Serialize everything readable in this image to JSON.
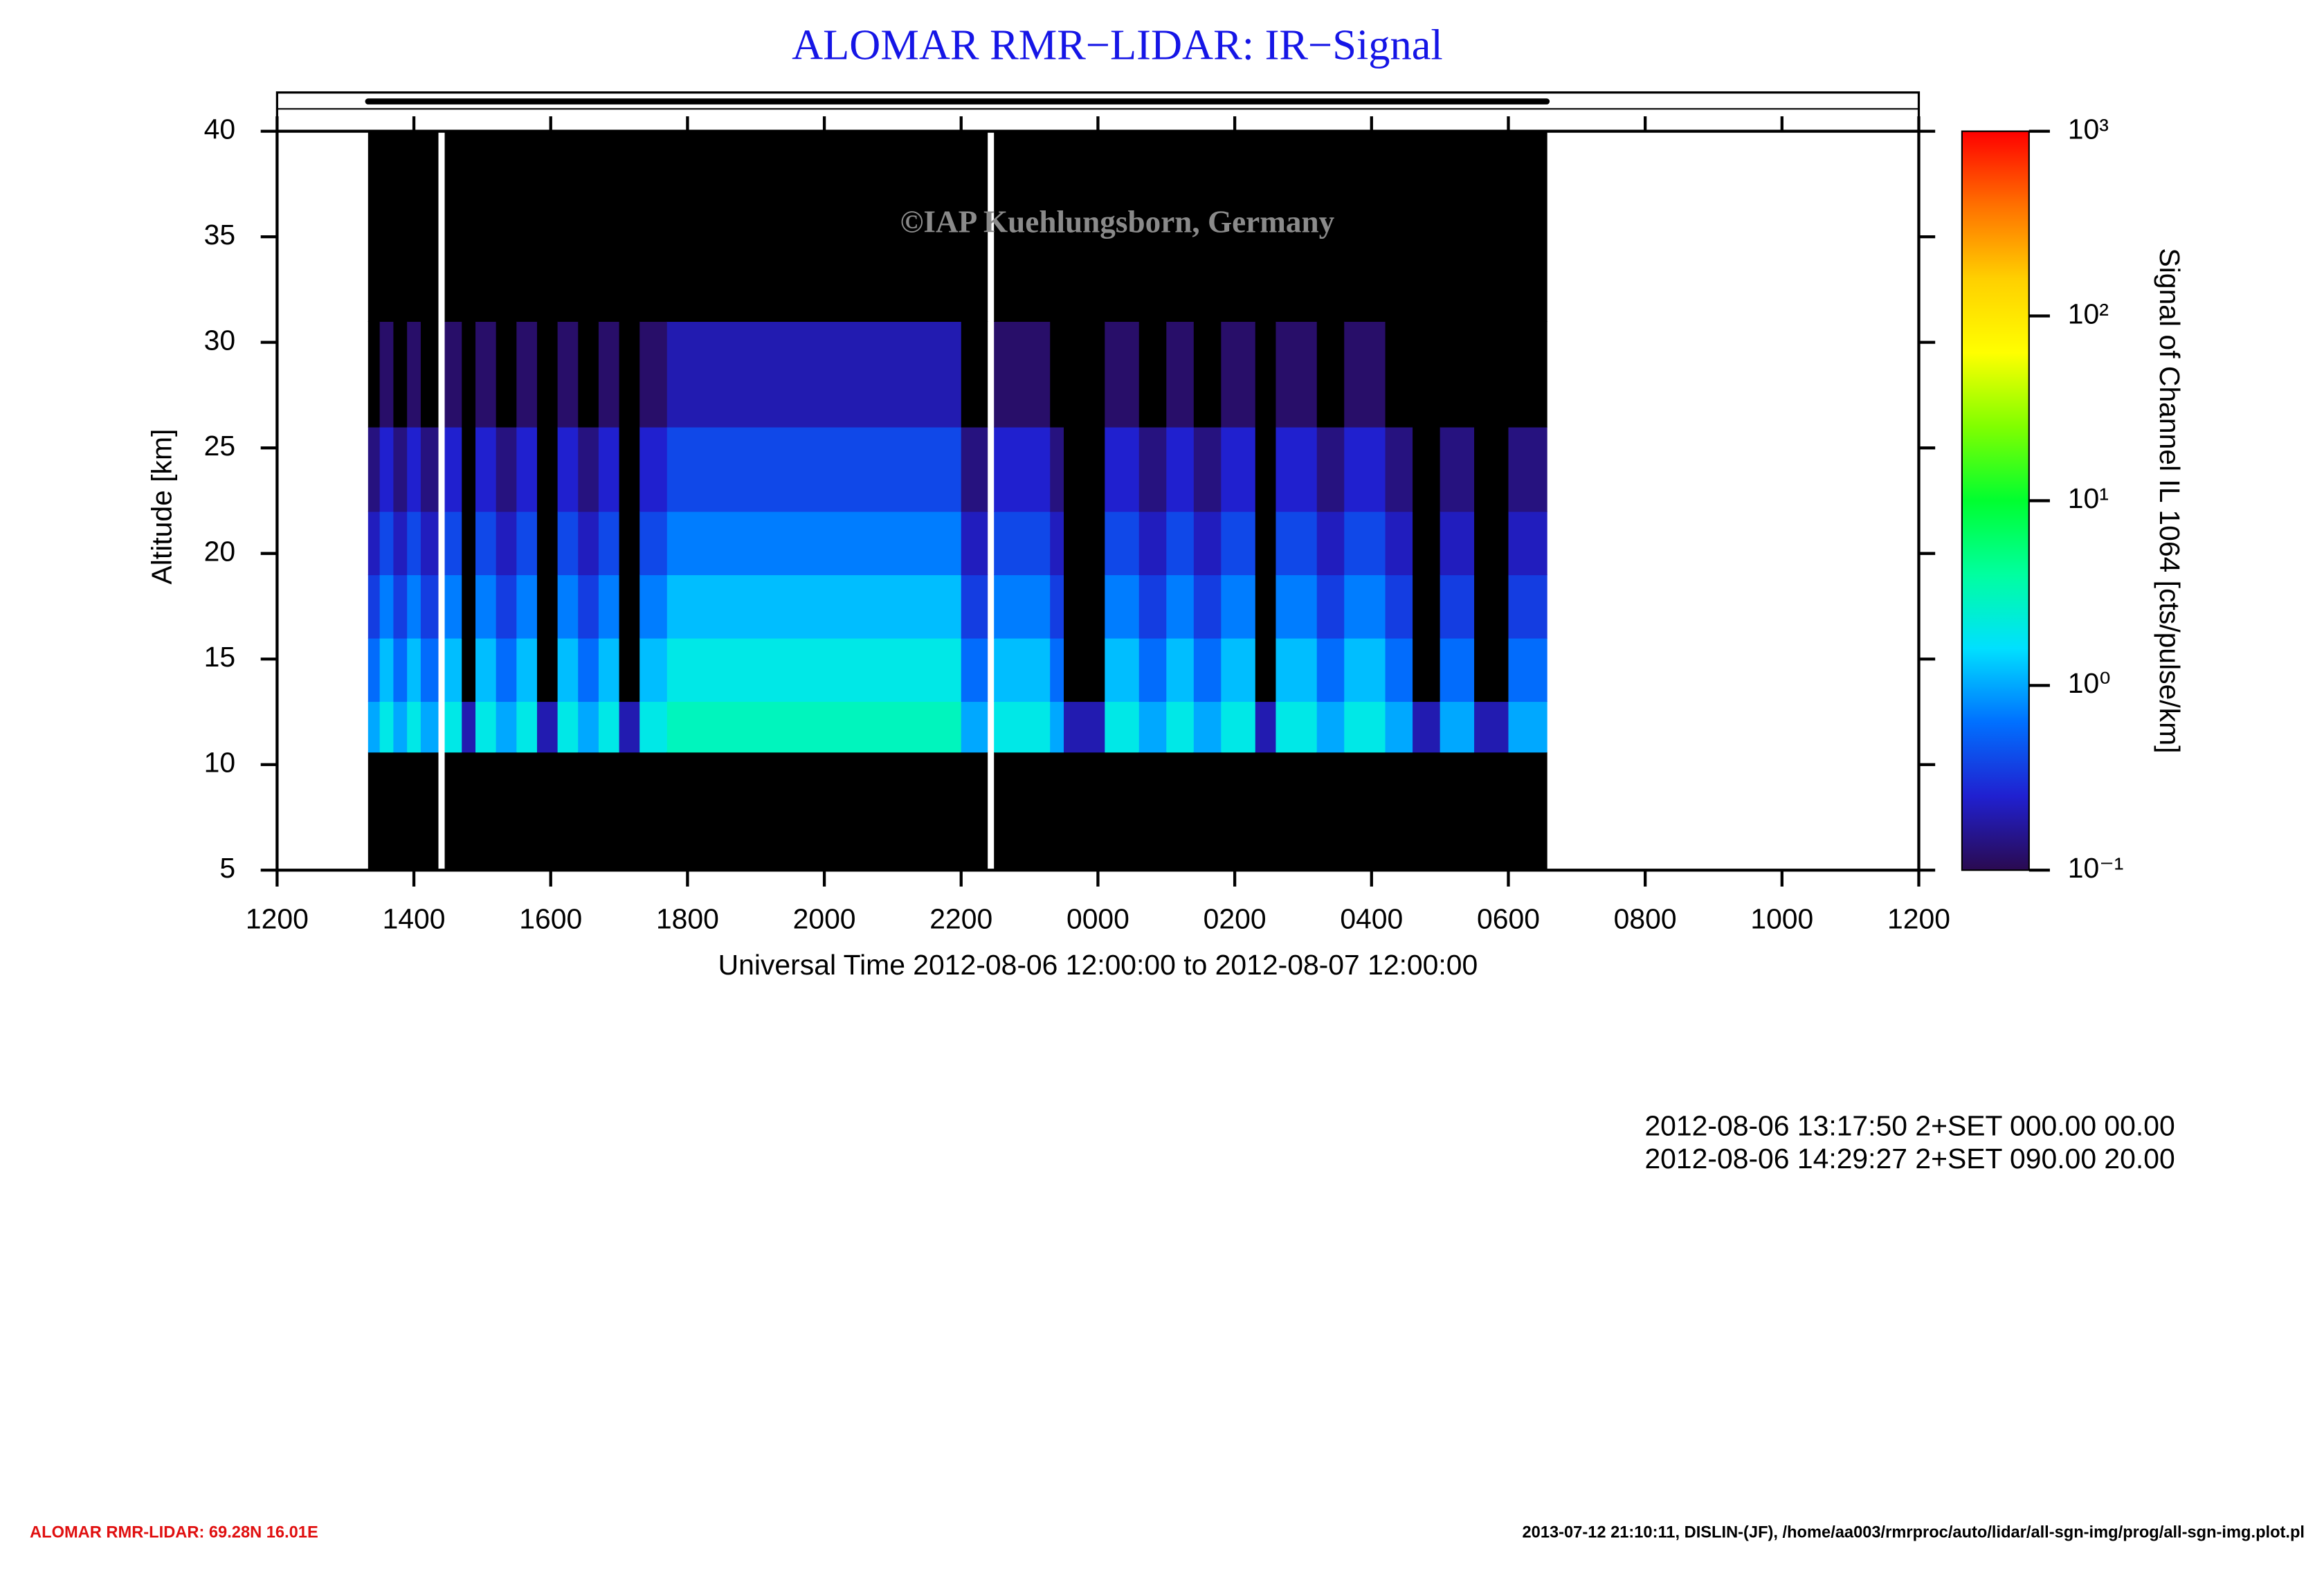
{
  "chart_data": {
    "type": "heatmap",
    "title": "ALOMAR RMR−LIDAR: IR−Signal",
    "watermark": "©IAP Kuehlungsborn, Germany",
    "y_label": "Altitude [km]",
    "x_label": "Universal Time 2012-08-06 12:00:00 to 2012-08-07 12:00:00",
    "colorbar_label": "Signal of Channel IL 1064 [cts/pulse/km]",
    "xlim": [
      0,
      24
    ],
    "xticks": [
      {
        "value": 0,
        "label": "1200"
      },
      {
        "value": 2,
        "label": "1400"
      },
      {
        "value": 4,
        "label": "1600"
      },
      {
        "value": 6,
        "label": "1800"
      },
      {
        "value": 8,
        "label": "2000"
      },
      {
        "value": 10,
        "label": "2200"
      },
      {
        "value": 12,
        "label": "0000"
      },
      {
        "value": 14,
        "label": "0200"
      },
      {
        "value": 16,
        "label": "0400"
      },
      {
        "value": 18,
        "label": "0600"
      },
      {
        "value": 20,
        "label": "0800"
      },
      {
        "value": 22,
        "label": "1000"
      },
      {
        "value": 24,
        "label": "1200"
      }
    ],
    "ylim": [
      5,
      40
    ],
    "yticks": [
      5,
      10,
      15,
      20,
      25,
      30,
      35,
      40
    ],
    "zlim": [
      0.1,
      1000
    ],
    "zscale": "log",
    "zticks": [
      {
        "value": 0.1,
        "label": "10⁻¹"
      },
      {
        "value": 1,
        "label": "10⁰"
      },
      {
        "value": 10,
        "label": "10¹"
      },
      {
        "value": 100,
        "label": "10²"
      },
      {
        "value": 1000,
        "label": "10³"
      }
    ],
    "colormap": [
      "#2a0a50",
      "#2020d0",
      "#0070ff",
      "#00e0ff",
      "#00ffa0",
      "#00ff30",
      "#80ff00",
      "#ffff00",
      "#ffd000",
      "#ff7000",
      "#ff0000"
    ],
    "below_color": "#000000",
    "x_edges": [
      1.33,
      1.5,
      1.7,
      1.9,
      2.1,
      2.35,
      2.45,
      2.7,
      2.9,
      3.2,
      3.5,
      3.8,
      4.1,
      4.4,
      4.7,
      5.0,
      5.3,
      5.7,
      10.0,
      10.38,
      10.48,
      11.3,
      11.5,
      12.1,
      12.6,
      13.0,
      13.4,
      13.8,
      14.3,
      14.6,
      15.2,
      15.6,
      16.2,
      16.6,
      17.0,
      17.5,
      18.0,
      18.56
    ],
    "y_edges": [
      5,
      10.6,
      13,
      16,
      19,
      22,
      26,
      31,
      40
    ],
    "z": [
      [
        0,
        1,
        0.6,
        0.35,
        0.22,
        0.14,
        0.07,
        0.03
      ],
      [
        0,
        2,
        1.2,
        0.7,
        0.4,
        0.25,
        0.12,
        0.05
      ],
      [
        0,
        1,
        0.6,
        0.35,
        0.22,
        0.14,
        0.07,
        0.03
      ],
      [
        0,
        2,
        1.2,
        0.7,
        0.4,
        0.25,
        0.12,
        0.05
      ],
      [
        0,
        1,
        0.6,
        0.35,
        0.22,
        0.14,
        0.07,
        0.03
      ],
      [
        null,
        null,
        null,
        null,
        null,
        null,
        null,
        null
      ],
      [
        0,
        2,
        1.2,
        0.7,
        0.4,
        0.25,
        0.12,
        0.05
      ],
      [
        0,
        0.2,
        0.08,
        0.05,
        0.04,
        0.03,
        0.03,
        0.02
      ],
      [
        0,
        2,
        1.2,
        0.7,
        0.4,
        0.25,
        0.12,
        0.05
      ],
      [
        0,
        1,
        0.6,
        0.35,
        0.22,
        0.14,
        0.07,
        0.03
      ],
      [
        0,
        2,
        1.2,
        0.7,
        0.4,
        0.25,
        0.12,
        0.05
      ],
      [
        0,
        0.2,
        0.08,
        0.05,
        0.04,
        0.03,
        0.03,
        0.02
      ],
      [
        0,
        2,
        1.2,
        0.7,
        0.4,
        0.25,
        0.12,
        0.05
      ],
      [
        0,
        1,
        0.6,
        0.35,
        0.22,
        0.14,
        0.07,
        0.03
      ],
      [
        0,
        2,
        1.2,
        0.7,
        0.4,
        0.25,
        0.12,
        0.05
      ],
      [
        0,
        0.2,
        0.08,
        0.05,
        0.04,
        0.03,
        0.03,
        0.02
      ],
      [
        0,
        2,
        1.2,
        0.7,
        0.4,
        0.25,
        0.12,
        0.05
      ],
      [
        0,
        3,
        2,
        1.2,
        0.7,
        0.4,
        0.2,
        0.06
      ],
      [
        0,
        1,
        0.6,
        0.35,
        0.22,
        0.14,
        0.07,
        0.03
      ],
      [
        null,
        null,
        null,
        null,
        null,
        null,
        null,
        null
      ],
      [
        0,
        2,
        1.2,
        0.7,
        0.4,
        0.25,
        0.12,
        0.05
      ],
      [
        0,
        1,
        0.6,
        0.35,
        0.22,
        0.14,
        0.07,
        0.03
      ],
      [
        0,
        0.2,
        0.08,
        0.05,
        0.04,
        0.03,
        0.03,
        0.02
      ],
      [
        0,
        2,
        1.2,
        0.7,
        0.4,
        0.25,
        0.12,
        0.05
      ],
      [
        0,
        1,
        0.6,
        0.35,
        0.22,
        0.14,
        0.07,
        0.03
      ],
      [
        0,
        2,
        1.2,
        0.7,
        0.4,
        0.25,
        0.12,
        0.05
      ],
      [
        0,
        1,
        0.6,
        0.35,
        0.22,
        0.14,
        0.07,
        0.03
      ],
      [
        0,
        2,
        1.2,
        0.7,
        0.4,
        0.25,
        0.12,
        0.05
      ],
      [
        0,
        0.2,
        0.08,
        0.05,
        0.04,
        0.03,
        0.03,
        0.02
      ],
      [
        0,
        2,
        1.2,
        0.7,
        0.4,
        0.25,
        0.12,
        0.05
      ],
      [
        0,
        1,
        0.6,
        0.35,
        0.22,
        0.14,
        0.07,
        0.03
      ],
      [
        0,
        2,
        1.2,
        0.7,
        0.4,
        0.25,
        0.12,
        0.05
      ],
      [
        0,
        1,
        0.6,
        0.35,
        0.22,
        0.14,
        0.07,
        0.03
      ],
      [
        0,
        0.2,
        0.08,
        0.05,
        0.04,
        0.03,
        0.03,
        0.02
      ],
      [
        0,
        1,
        0.6,
        0.35,
        0.22,
        0.14,
        0.07,
        0.03
      ],
      [
        0,
        0.2,
        0.08,
        0.05,
        0.04,
        0.03,
        0.03,
        0.02
      ],
      [
        0,
        1,
        0.6,
        0.35,
        0.22,
        0.14,
        0.07,
        0.03
      ]
    ],
    "info_lines": [
      "2012-08-06 13:17:50 2+SET 000.00 00.00",
      "2012-08-06 14:29:27 2+SET 090.00 20.00"
    ],
    "footer_left": "ALOMAR RMR-LIDAR: 69.28N 16.01E",
    "footer_right": "2013-07-12 21:10:11, DISLIN-(JF), /home/aa003/rmrproc/auto/lidar/all-sgn-img/prog/all-sgn-img.plot.pl"
  }
}
